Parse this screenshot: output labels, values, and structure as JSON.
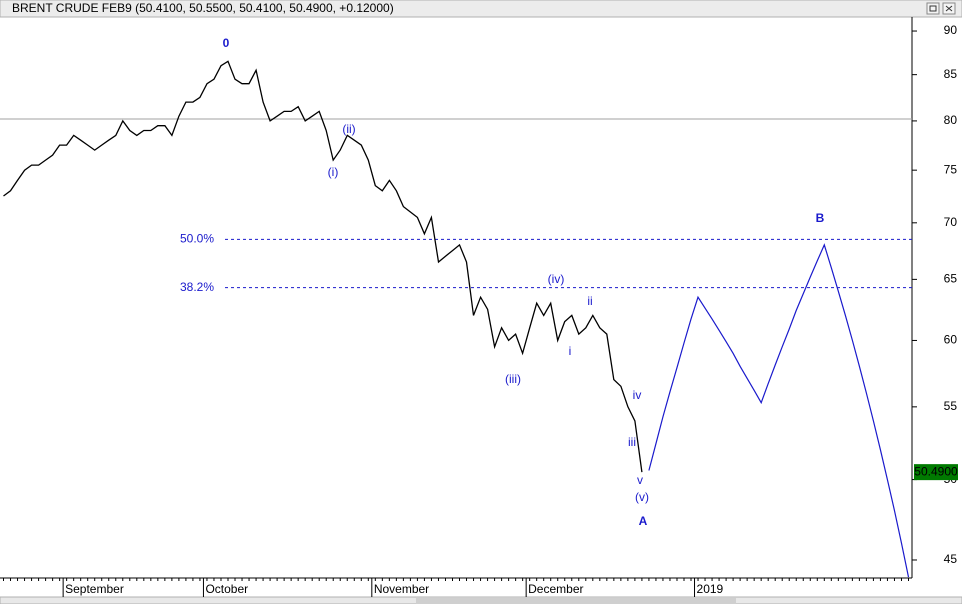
{
  "chart_data": {
    "type": "line",
    "title": "BRENT CRUDE FEB9 (50.4100, 50.5500, 50.4100, 50.4900, +0.12000)",
    "categories": [
      null,
      null,
      null,
      null,
      null,
      null,
      null,
      null,
      null,
      "September",
      null,
      null,
      null,
      null,
      null,
      null,
      null,
      null,
      null,
      null,
      null,
      null,
      null,
      null,
      null,
      null,
      null,
      null,
      null,
      "October",
      null,
      null,
      null,
      null,
      null,
      null,
      null,
      null,
      null,
      null,
      null,
      null,
      null,
      null,
      null,
      null,
      null,
      null,
      null,
      null,
      null,
      null,
      null,
      "November",
      null,
      null,
      null,
      null,
      null,
      null,
      null,
      null,
      null,
      null,
      null,
      null,
      null,
      null,
      null,
      null,
      null,
      null,
      null,
      null,
      null,
      "December",
      null,
      null,
      null,
      null,
      null,
      null,
      null,
      null,
      null,
      null,
      null,
      null,
      null,
      null,
      null,
      null,
      null,
      null,
      null,
      null,
      null,
      null,
      null,
      "2019",
      null,
      null,
      null,
      null,
      null,
      null,
      null,
      null,
      null,
      null,
      null,
      null,
      null,
      null,
      null,
      null,
      null,
      null,
      null,
      null,
      null,
      null,
      null,
      null,
      null,
      null,
      null,
      null,
      null,
      null
    ],
    "series": [
      {
        "color": "#000000",
        "values": [
          72.5,
          73,
          74,
          75,
          75.5,
          75.5,
          76,
          76.5,
          77.5,
          77.5,
          78.5,
          78,
          77.5,
          77,
          77.5,
          78,
          78.5,
          80,
          79,
          78.5,
          79,
          79,
          79.5,
          79.5,
          78.5,
          80.5,
          82,
          82,
          82.5,
          84,
          84.5,
          86,
          86.5,
          84.5,
          84,
          84,
          85.5,
          82,
          80,
          80.5,
          81,
          81,
          81.5,
          80,
          80.5,
          81,
          79,
          76,
          77,
          78.5,
          78,
          77.5,
          76,
          73.5,
          73,
          74,
          73,
          71.5,
          71,
          70.5,
          69,
          70.5,
          66.5,
          67,
          67.5,
          68,
          66.5,
          62,
          63.5,
          62.5,
          59.5,
          61,
          60,
          60.5,
          59,
          61,
          63,
          62,
          63,
          60,
          61.5,
          62,
          60.5,
          61,
          62,
          61,
          60.5,
          57,
          56.5,
          55,
          54,
          50.49,
          null,
          null,
          null,
          null,
          null,
          null,
          null,
          null,
          null,
          null,
          null,
          null,
          null,
          null,
          null,
          null,
          null,
          null,
          null,
          null,
          null,
          null,
          null,
          null,
          null,
          null,
          null,
          null,
          null,
          null,
          null,
          null,
          null,
          null,
          null,
          null,
          null,
          null
        ]
      },
      {
        "color": "#1a1acc",
        "values": [
          null,
          null,
          null,
          null,
          null,
          null,
          null,
          null,
          null,
          null,
          null,
          null,
          null,
          null,
          null,
          null,
          null,
          null,
          null,
          null,
          null,
          null,
          null,
          null,
          null,
          null,
          null,
          null,
          null,
          null,
          null,
          null,
          null,
          null,
          null,
          null,
          null,
          null,
          null,
          null,
          null,
          null,
          null,
          null,
          null,
          null,
          null,
          null,
          null,
          null,
          null,
          null,
          null,
          null,
          null,
          null,
          null,
          null,
          null,
          null,
          null,
          null,
          null,
          null,
          null,
          null,
          null,
          null,
          null,
          null,
          null,
          null,
          null,
          null,
          null,
          null,
          null,
          null,
          null,
          null,
          null,
          null,
          null,
          null,
          null,
          null,
          null,
          null,
          null,
          null,
          null,
          null,
          50.6,
          52.4,
          54.3,
          56.1,
          57.9,
          59.8,
          61.7,
          63.5,
          62.6,
          61.7,
          60.8,
          59.9,
          59.0,
          58.0,
          57.1,
          56.2,
          55.3,
          56.7,
          58.1,
          59.5,
          60.9,
          62.4,
          63.8,
          65.2,
          66.6,
          68.0,
          66,
          64,
          62,
          60,
          58,
          56,
          54,
          52,
          50,
          48,
          46,
          44
        ]
      }
    ],
    "y_scale": "log",
    "ylim": [
      43.95,
      91.55
    ],
    "yticks": [
      45,
      50,
      55,
      60,
      65,
      70,
      75,
      80,
      85,
      90
    ],
    "hline": 80.2,
    "last_price": {
      "value": 50.49,
      "label": "50.4900",
      "color": "#007a00"
    },
    "levels": [
      {
        "value": 68.5,
        "label": "50.0%"
      },
      {
        "value": 64.3,
        "label": "38.2%"
      }
    ],
    "annotations": [
      {
        "text": "0"
      },
      {
        "text": "(i)"
      },
      {
        "text": "(ii)"
      },
      {
        "text": "(iii)"
      },
      {
        "text": "(iv)"
      },
      {
        "text": "i"
      },
      {
        "text": "ii"
      },
      {
        "text": "iii"
      },
      {
        "text": "iv"
      },
      {
        "text": "v"
      },
      {
        "text": "(v)"
      },
      {
        "text": "A"
      },
      {
        "text": "B"
      }
    ]
  }
}
